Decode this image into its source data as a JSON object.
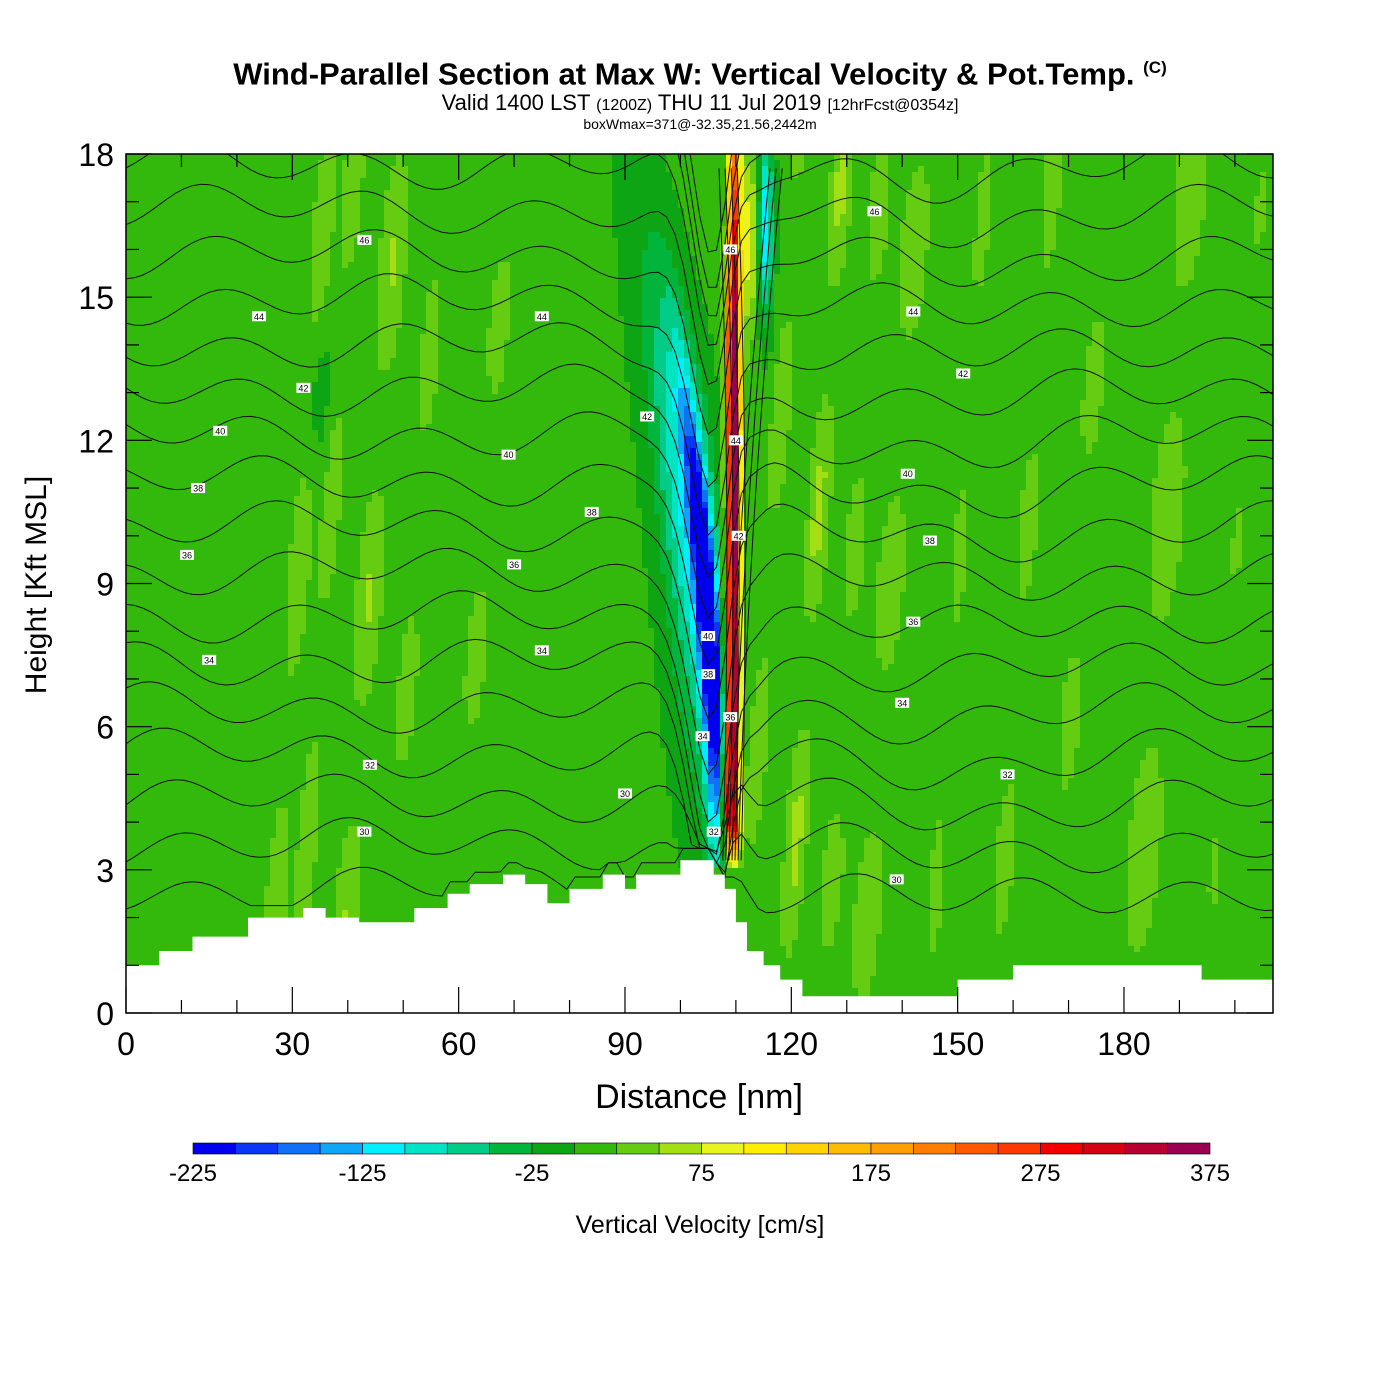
{
  "title": {
    "main": "Wind-Parallel Section at Max W: Vertical Velocity & Pot.Temp.",
    "copyright_mark": "(C)",
    "valid_prefix": "Valid 1400 LST",
    "valid_utc": "(1200Z)",
    "valid_date": "THU 11 Jul 2019",
    "forecast": "[12hrFcst@0354z]",
    "box_wmax": "boxWmax=371@-32.35,21.56,2442m"
  },
  "chart_data": {
    "type": "heatmap",
    "xlabel": "Distance [nm]",
    "ylabel": "Height [Kft MSL]",
    "xlim": [
      0,
      207
    ],
    "ylim": [
      0,
      18
    ],
    "x_ticks": [
      0,
      30,
      60,
      90,
      120,
      150,
      180
    ],
    "y_ticks": [
      0,
      3,
      6,
      9,
      12,
      15,
      18
    ],
    "colorbar": {
      "label": "Vertical Velocity [cm/s]",
      "bounds": [
        -225,
        -200,
        -175,
        -150,
        -125,
        -100,
        -75,
        -50,
        -25,
        0,
        25,
        50,
        75,
        100,
        125,
        150,
        175,
        200,
        225,
        250,
        275,
        300,
        325,
        350,
        375
      ],
      "tick_labels": [
        "-225",
        "-125",
        "-25",
        "75",
        "175",
        "275",
        "375"
      ],
      "colors": [
        "#0000ee",
        "#0a36f7",
        "#1070f8",
        "#10a6f8",
        "#00eeff",
        "#00e4c6",
        "#00cc88",
        "#00b43c",
        "#0ea514",
        "#33b90b",
        "#66cc12",
        "#a4df14",
        "#e7f41d",
        "#ffee00",
        "#ffd300",
        "#ffbb00",
        "#ff9f00",
        "#ff7d00",
        "#ff5a00",
        "#ff3700",
        "#f50000",
        "#d40014",
        "#b60031",
        "#990050"
      ]
    },
    "terrain_kft": [
      [
        0,
        1.0
      ],
      [
        6,
        1.0
      ],
      [
        6,
        1.3
      ],
      [
        12,
        1.3
      ],
      [
        12,
        1.6
      ],
      [
        22,
        1.6
      ],
      [
        22,
        2.0
      ],
      [
        32,
        2.0
      ],
      [
        32,
        2.2
      ],
      [
        36,
        2.2
      ],
      [
        36,
        2.0
      ],
      [
        42,
        2.0
      ],
      [
        42,
        1.9
      ],
      [
        52,
        1.9
      ],
      [
        52,
        2.2
      ],
      [
        58,
        2.2
      ],
      [
        58,
        2.5
      ],
      [
        62,
        2.5
      ],
      [
        62,
        2.7
      ],
      [
        68,
        2.7
      ],
      [
        68,
        2.9
      ],
      [
        72,
        2.9
      ],
      [
        72,
        2.7
      ],
      [
        76,
        2.7
      ],
      [
        76,
        2.3
      ],
      [
        80,
        2.3
      ],
      [
        80,
        2.6
      ],
      [
        86,
        2.6
      ],
      [
        86,
        2.9
      ],
      [
        90,
        2.9
      ],
      [
        90,
        2.6
      ],
      [
        92,
        2.6
      ],
      [
        92,
        2.9
      ],
      [
        100,
        2.9
      ],
      [
        100,
        3.2
      ],
      [
        106,
        3.2
      ],
      [
        106,
        2.9
      ],
      [
        108,
        2.9
      ],
      [
        108,
        2.6
      ],
      [
        110,
        2.6
      ],
      [
        110,
        1.9
      ],
      [
        112,
        1.9
      ],
      [
        112,
        1.3
      ],
      [
        115,
        1.3
      ],
      [
        115,
        1.0
      ],
      [
        118,
        1.0
      ],
      [
        118,
        0.7
      ],
      [
        122,
        0.7
      ],
      [
        122,
        0.35
      ],
      [
        150,
        0.35
      ],
      [
        150,
        0.7
      ],
      [
        160,
        0.7
      ],
      [
        160,
        1.0
      ],
      [
        194,
        1.0
      ],
      [
        194,
        0.7
      ],
      [
        207,
        0.7
      ]
    ],
    "vertical_velocity_features": [
      {
        "name": "updraft core",
        "x": 109.5,
        "y_range": [
          3,
          18
        ],
        "max": 371
      },
      {
        "name": "downdraft core",
        "x": 105,
        "y_range": [
          3.5,
          14
        ],
        "min": -225
      }
    ],
    "theta_contour_labels": [
      {
        "text": "46",
        "x": 43,
        "y": 16.2
      },
      {
        "text": "44",
        "x": 24,
        "y": 14.6
      },
      {
        "text": "44",
        "x": 75,
        "y": 14.6
      },
      {
        "text": "42",
        "x": 32,
        "y": 13.1
      },
      {
        "text": "42",
        "x": 94,
        "y": 12.5
      },
      {
        "text": "40",
        "x": 17,
        "y": 12.2
      },
      {
        "text": "40",
        "x": 69,
        "y": 11.7
      },
      {
        "text": "38",
        "x": 13,
        "y": 11.0
      },
      {
        "text": "38",
        "x": 84,
        "y": 10.5
      },
      {
        "text": "36",
        "x": 11,
        "y": 9.6
      },
      {
        "text": "36",
        "x": 70,
        "y": 9.4
      },
      {
        "text": "34",
        "x": 15,
        "y": 7.4
      },
      {
        "text": "34",
        "x": 75,
        "y": 7.6
      },
      {
        "text": "32",
        "x": 44,
        "y": 5.2
      },
      {
        "text": "30",
        "x": 90,
        "y": 4.6
      },
      {
        "text": "30",
        "x": 43,
        "y": 3.8
      },
      {
        "text": "46",
        "x": 109,
        "y": 16.0
      },
      {
        "text": "44",
        "x": 110,
        "y": 12.0
      },
      {
        "text": "42",
        "x": 110.5,
        "y": 10.0
      },
      {
        "text": "40",
        "x": 105,
        "y": 7.9
      },
      {
        "text": "38",
        "x": 105,
        "y": 7.1
      },
      {
        "text": "34",
        "x": 104,
        "y": 5.8
      },
      {
        "text": "36",
        "x": 109,
        "y": 6.2
      },
      {
        "text": "32",
        "x": 106,
        "y": 3.8
      },
      {
        "text": "46",
        "x": 135,
        "y": 16.8
      },
      {
        "text": "44",
        "x": 142,
        "y": 14.7
      },
      {
        "text": "42",
        "x": 151,
        "y": 13.4
      },
      {
        "text": "40",
        "x": 141,
        "y": 11.3
      },
      {
        "text": "38",
        "x": 145,
        "y": 9.9
      },
      {
        "text": "36",
        "x": 142,
        "y": 8.2
      },
      {
        "text": "34",
        "x": 140,
        "y": 6.5
      },
      {
        "text": "32",
        "x": 159,
        "y": 5.0
      },
      {
        "text": "30",
        "x": 139,
        "y": 2.8
      }
    ]
  }
}
